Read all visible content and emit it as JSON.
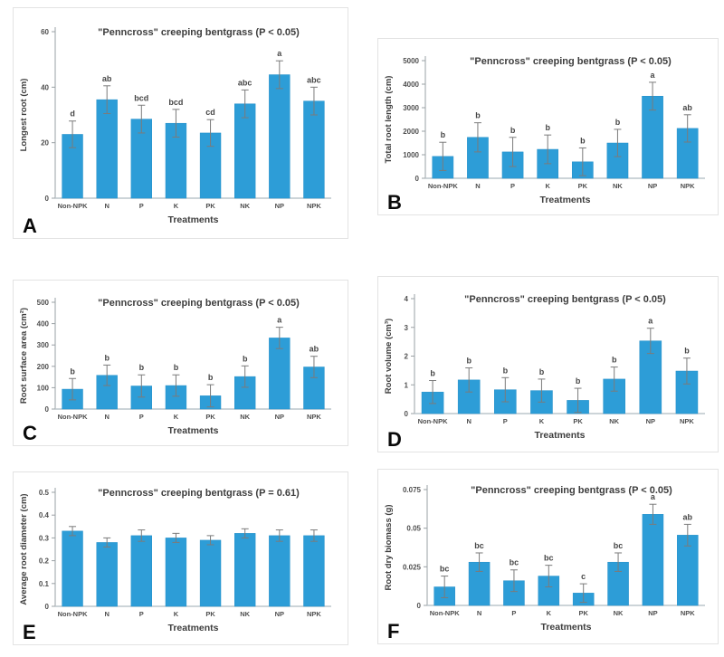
{
  "figure": {
    "bar_color": "#2D9DD7",
    "bar_edge_color": "#2590C9",
    "error_color": "#7b7b7b",
    "letter_color": "#454545",
    "axis_color": "#9aa0a4",
    "baseline_color": "#bcc5cb",
    "text_color": "#3d3d3d",
    "tick_color": "#4f4f4f",
    "panel_border_color": "#e3e3e3"
  },
  "chart_data": [
    {
      "panel": "A",
      "type": "bar",
      "title": "\"Penncross\" creeping bentgrass (P < 0.05)",
      "xlabel": "Treatments",
      "ylabel": "Longest root (cm)",
      "ylim": [
        0,
        60
      ],
      "yticks": [
        0,
        20,
        40,
        60
      ],
      "ytick_labels": [
        "0",
        "20",
        "40",
        "60"
      ],
      "categories": [
        "Non-NPK",
        "N",
        "P",
        "K",
        "PK",
        "NK",
        "NP",
        "NPK"
      ],
      "values": [
        23,
        35.5,
        28.5,
        27,
        23.5,
        34,
        44.5,
        35
      ],
      "errors": [
        4.8,
        5,
        5,
        5,
        4.8,
        5,
        5,
        5
      ],
      "letters": [
        "d",
        "ab",
        "bcd",
        "bcd",
        "cd",
        "abc",
        "a",
        "abc"
      ],
      "legend": null,
      "grid": false
    },
    {
      "panel": "B",
      "type": "bar",
      "title": "\"Penncross\" creeping bentgrass (P < 0.05)",
      "xlabel": "Treatments",
      "ylabel": "Total root length (cm)",
      "ylim": [
        0,
        5000
      ],
      "yticks": [
        0,
        1000,
        2000,
        3000,
        4000,
        5000
      ],
      "ytick_labels": [
        "0",
        "1000",
        "2000",
        "3000",
        "4000",
        "5000"
      ],
      "categories": [
        "Non-NPK",
        "N",
        "P",
        "K",
        "PK",
        "NK",
        "NP",
        "NPK"
      ],
      "values": [
        930,
        1740,
        1120,
        1230,
        700,
        1500,
        3490,
        2120
      ],
      "errors": [
        600,
        620,
        620,
        610,
        590,
        580,
        590,
        580
      ],
      "letters": [
        "b",
        "b",
        "b",
        "b",
        "b",
        "b",
        "a",
        "ab"
      ],
      "legend": null,
      "grid": false
    },
    {
      "panel": "C",
      "type": "bar",
      "title": "\"Penncross\" creeping bentgrass (P < 0.05)",
      "xlabel": "Treatments",
      "ylabel": "Root surface area (cm²)",
      "ylim": [
        0,
        500
      ],
      "yticks": [
        0,
        100,
        200,
        300,
        400,
        500
      ],
      "ytick_labels": [
        "0",
        "100",
        "200",
        "300",
        "400",
        "500"
      ],
      "categories": [
        "Non-NPK",
        "N",
        "P",
        "K",
        "PK",
        "NK",
        "NP",
        "NPK"
      ],
      "values": [
        93,
        158,
        108,
        110,
        62,
        152,
        333,
        197
      ],
      "errors": [
        50,
        48,
        52,
        50,
        52,
        50,
        50,
        50
      ],
      "letters": [
        "b",
        "b",
        "b",
        "b",
        "b",
        "b",
        "a",
        "ab"
      ],
      "legend": null,
      "grid": false
    },
    {
      "panel": "D",
      "type": "bar",
      "title": "\"Penncross\" creeping bentgrass (P < 0.05)",
      "xlabel": "Treatments",
      "ylabel": "Root volume (cm³)",
      "ylim": [
        0,
        4
      ],
      "yticks": [
        0,
        1,
        2,
        3,
        4
      ],
      "ytick_labels": [
        "0",
        "1",
        "2",
        "3",
        "4"
      ],
      "categories": [
        "Non-NPK",
        "N",
        "P",
        "K",
        "PK",
        "NK",
        "NP",
        "NPK"
      ],
      "values": [
        0.75,
        1.17,
        0.83,
        0.8,
        0.46,
        1.2,
        2.53,
        1.48
      ],
      "errors": [
        0.4,
        0.42,
        0.42,
        0.4,
        0.42,
        0.42,
        0.44,
        0.45
      ],
      "letters": [
        "b",
        "b",
        "b",
        "b",
        "b",
        "b",
        "a",
        "b"
      ],
      "legend": null,
      "grid": false
    },
    {
      "panel": "E",
      "type": "bar",
      "title": "\"Penncross\" creeping bentgrass (P = 0.61)",
      "xlabel": "Treatments",
      "ylabel": "Average root diameter (cm)",
      "ylim": [
        0,
        0.5
      ],
      "yticks": [
        0,
        0.1,
        0.2,
        0.3,
        0.4,
        0.5
      ],
      "ytick_labels": [
        "0",
        "0.1",
        "0.2",
        "0.3",
        "0.4",
        "0.5"
      ],
      "categories": [
        "Non-NPK",
        "N",
        "P",
        "K",
        "PK",
        "NK",
        "NP",
        "NPK"
      ],
      "values": [
        0.33,
        0.28,
        0.31,
        0.3,
        0.29,
        0.32,
        0.31,
        0.31
      ],
      "errors": [
        0.02,
        0.02,
        0.025,
        0.02,
        0.02,
        0.02,
        0.025,
        0.025
      ],
      "letters": [
        "",
        "",
        "",
        "",
        "",
        "",
        "",
        ""
      ],
      "legend": null,
      "grid": false
    },
    {
      "panel": "F",
      "type": "bar",
      "title": "\"Penncross\" creeping bentgrass (P < 0.05)",
      "xlabel": "Treatments",
      "ylabel": "Root dry biomass (g)",
      "ylim": [
        0,
        0.075
      ],
      "yticks": [
        0,
        0.025,
        0.05,
        0.075
      ],
      "ytick_labels": [
        "0",
        "0.025",
        "0.05",
        "0.075"
      ],
      "categories": [
        "Non-NPK",
        "N",
        "P",
        "K",
        "PK",
        "NK",
        "NP",
        "NPK"
      ],
      "values": [
        0.012,
        0.028,
        0.016,
        0.019,
        0.008,
        0.028,
        0.059,
        0.0455
      ],
      "errors": [
        0.007,
        0.006,
        0.007,
        0.007,
        0.006,
        0.006,
        0.0065,
        0.007
      ],
      "letters": [
        "bc",
        "bc",
        "bc",
        "bc",
        "c",
        "bc",
        "a",
        "ab"
      ],
      "legend": null,
      "grid": false
    }
  ]
}
